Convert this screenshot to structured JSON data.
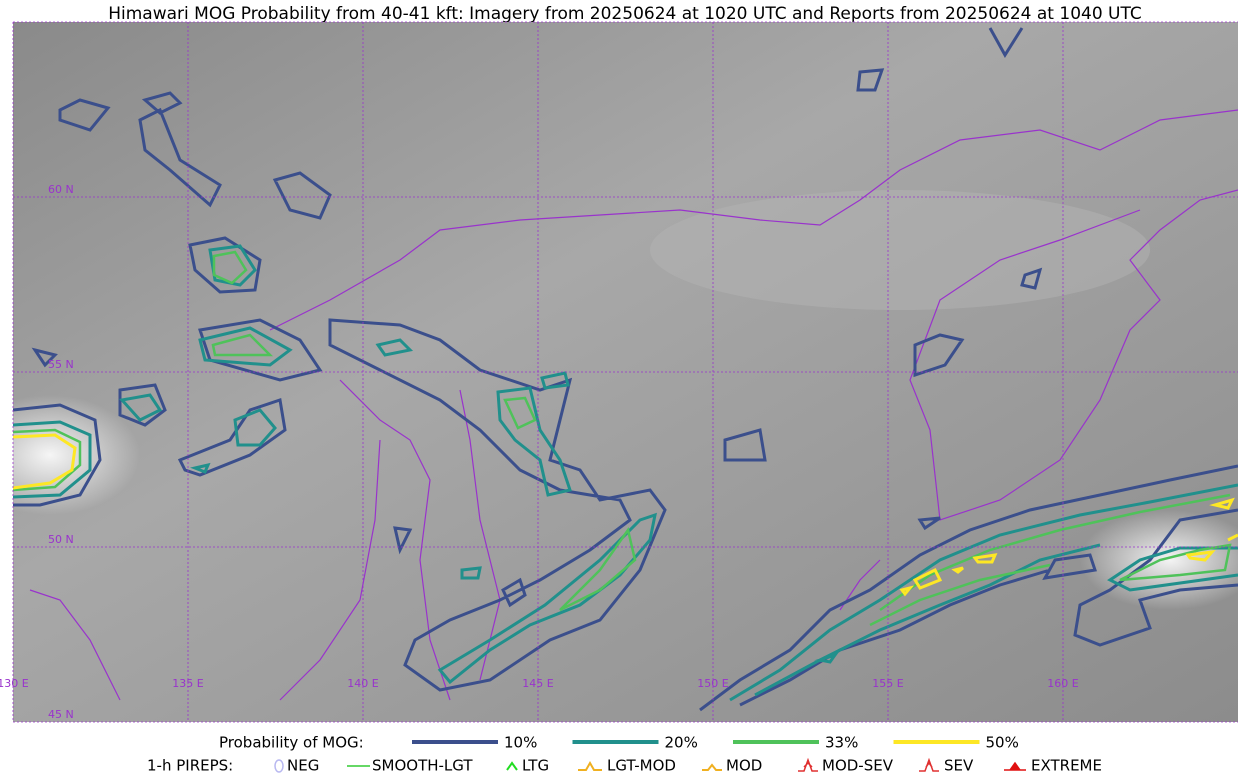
{
  "title": "Himawari MOG Probability from 40-41 kft: Imagery from 20250624 at 1020 UTC and Reports from 20250624 at 1040 UTC",
  "map": {
    "lat_labels": [
      "60 N",
      "55 N",
      "50 N",
      "45 N"
    ],
    "lon_labels": [
      "130 E",
      "135 E",
      "140 E",
      "145 E",
      "150 E",
      "155 E",
      "160 E"
    ]
  },
  "legend": {
    "probability": {
      "label": "Probability of MOG:",
      "items": [
        {
          "label": "10%",
          "color": "#3b4f8c"
        },
        {
          "label": "20%",
          "color": "#21908c"
        },
        {
          "label": "33%",
          "color": "#4fc25a"
        },
        {
          "label": "50%",
          "color": "#fde725"
        }
      ]
    },
    "pireps": {
      "label": "1-h PIREPS:",
      "items": [
        {
          "label": "NEG",
          "color": "#b8b8f0"
        },
        {
          "label": "SMOOTH-LGT",
          "color": "#33cc33"
        },
        {
          "label": "LTG",
          "color": "#22dd22"
        },
        {
          "label": "LGT-MOD",
          "color": "#f0b020"
        },
        {
          "label": "MOD",
          "color": "#f0b020"
        },
        {
          "label": "MOD-SEV",
          "color": "#e03030"
        },
        {
          "label": "SEV",
          "color": "#e03030"
        },
        {
          "label": "EXTREME",
          "color": "#e01010"
        }
      ]
    }
  }
}
